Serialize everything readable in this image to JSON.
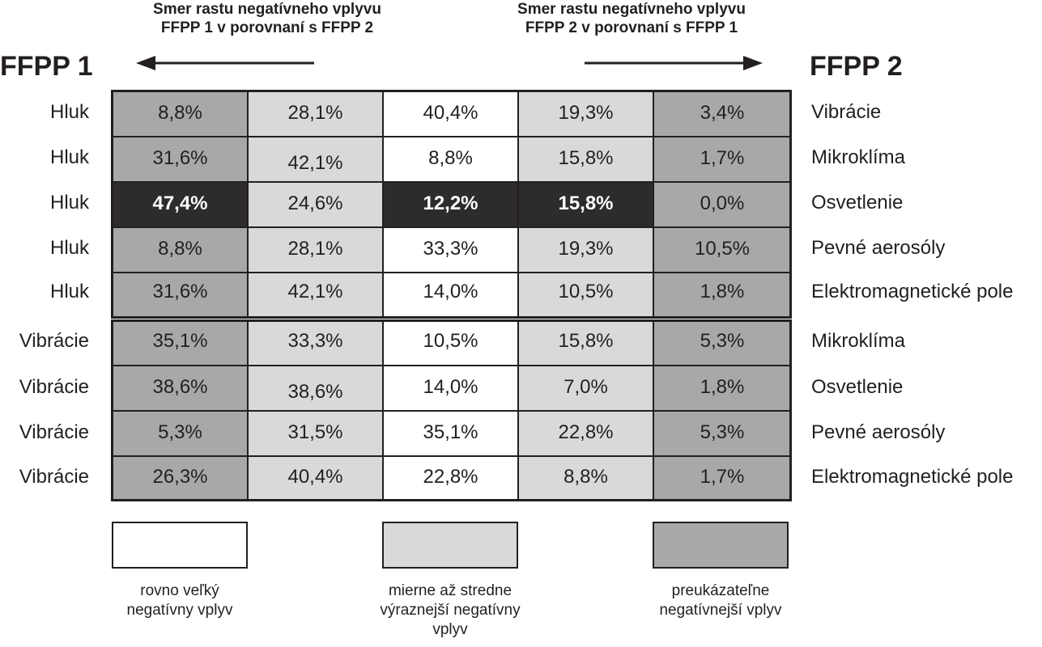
{
  "header": {
    "left_line1": "Smer rastu negatívneho vplyvu",
    "left_line2": "FFPP 1 v porovnaní s FFPP 2",
    "right_line1": "Smer rastu negatívneho vplyvu",
    "right_line2": "FFPP 2 v porovnaní s FFPP 1"
  },
  "labels": {
    "ffpp1": "FFPP 1",
    "ffpp2": "FFPP 2"
  },
  "left_factors": [
    "Hluk",
    "Hluk",
    "Hluk",
    "Hluk",
    "Hluk",
    "Vibrácie",
    "Vibrácie",
    "Vibrácie",
    "Vibrácie"
  ],
  "right_factors": [
    "Vibrácie",
    "Mikroklíma",
    "Osvetlenie",
    "Pevné aerosóly",
    "Elektromagnetické pole",
    "Mikroklíma",
    "Osvetlenie",
    "Pevné aerosóly",
    "Elektromagnetické pole"
  ],
  "colors": {
    "white": "#ffffff",
    "light": "#d9d9d9",
    "mid": "#a8a8a8",
    "dark": "#2e2b2c",
    "ink": "#231f20"
  },
  "chart_data": {
    "type": "heatmap",
    "title": "",
    "rows": [
      {
        "left": "Hluk",
        "right": "Vibrácie",
        "values": [
          "8,8%",
          "28,1%",
          "40,4%",
          "19,3%",
          "3,4%"
        ],
        "shades": [
          "mid",
          "light",
          "white",
          "light",
          "mid"
        ]
      },
      {
        "left": "Hluk",
        "right": "Mikroklíma",
        "values": [
          "31,6%",
          "42,1%",
          "8,8%",
          "15,8%",
          "1,7%"
        ],
        "shades": [
          "mid",
          "light",
          "white",
          "light",
          "mid"
        ]
      },
      {
        "left": "Hluk",
        "right": "Osvetlenie",
        "values": [
          "47,4%",
          "24,6%",
          "12,2%",
          "15,8%",
          "0,0%"
        ],
        "shades": [
          "dark",
          "light",
          "dark",
          "dark",
          "mid"
        ]
      },
      {
        "left": "Hluk",
        "right": "Pevné aerosóly",
        "values": [
          "8,8%",
          "28,1%",
          "33,3%",
          "19,3%",
          "10,5%"
        ],
        "shades": [
          "mid",
          "light",
          "white",
          "light",
          "mid"
        ]
      },
      {
        "left": "Hluk",
        "right": "Elektromagnetické pole",
        "values": [
          "31,6%",
          "42,1%",
          "14,0%",
          "10,5%",
          "1,8%"
        ],
        "shades": [
          "mid",
          "light",
          "white",
          "light",
          "mid"
        ]
      },
      {
        "left": "Vibrácie",
        "right": "Mikroklíma",
        "values": [
          "35,1%",
          "33,3%",
          "10,5%",
          "15,8%",
          "5,3%"
        ],
        "shades": [
          "mid",
          "light",
          "white",
          "light",
          "mid"
        ]
      },
      {
        "left": "Vibrácie",
        "right": "Osvetlenie",
        "values": [
          "38,6%",
          "38,6%",
          "14,0%",
          "7,0%",
          "1,8%"
        ],
        "shades": [
          "mid",
          "light",
          "white",
          "light",
          "mid"
        ]
      },
      {
        "left": "Vibrácie",
        "right": "Pevné aerosóly",
        "values": [
          "5,3%",
          "31,5%",
          "35,1%",
          "22,8%",
          "5,3%"
        ],
        "shades": [
          "mid",
          "light",
          "white",
          "light",
          "mid"
        ]
      },
      {
        "left": "Vibrácie",
        "right": "Elektromagnetické pole",
        "values": [
          "26,3%",
          "40,4%",
          "22,8%",
          "8,8%",
          "1,7%"
        ],
        "shades": [
          "mid",
          "light",
          "white",
          "light",
          "mid"
        ]
      }
    ],
    "legend": [
      {
        "shade": "white",
        "line1": "rovno veľký",
        "line2": "negatívny vplyv",
        "line3": ""
      },
      {
        "shade": "light",
        "line1": "mierne až stredne",
        "line2": "výraznejší negatívny",
        "line3": "vplyv"
      },
      {
        "shade": "mid",
        "line1": "preukázateľne",
        "line2": "negatívnejší vplyv",
        "line3": ""
      }
    ]
  }
}
